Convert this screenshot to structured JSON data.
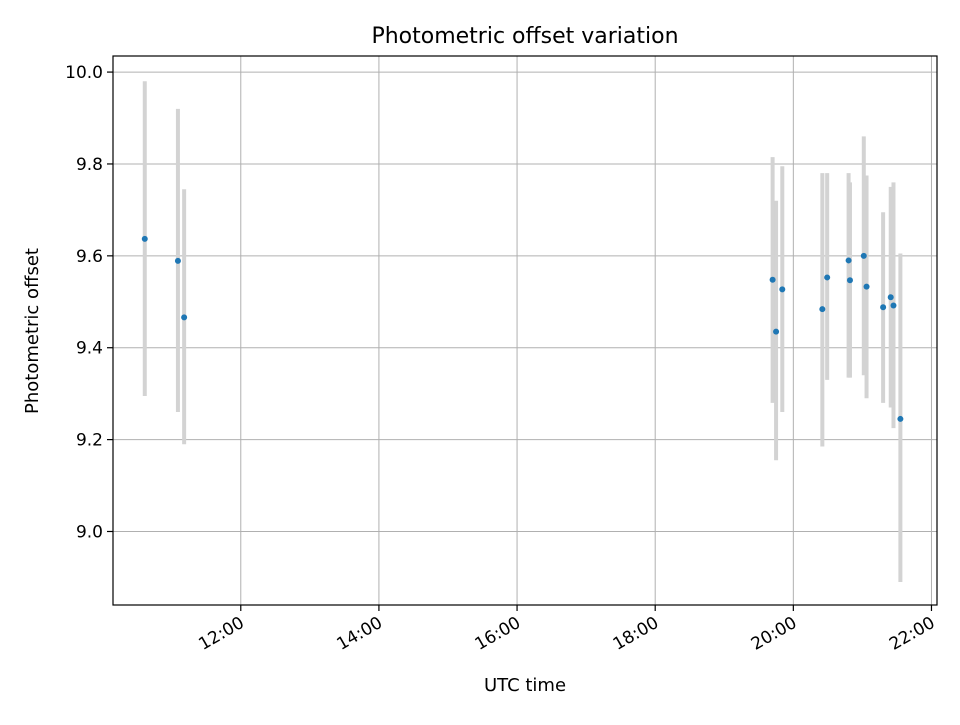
{
  "chart_data": {
    "type": "scatter",
    "title": "Photometric offset variation",
    "xlabel": "UTC time",
    "ylabel": "Photometric offset",
    "x_unit": "hours UTC",
    "xlim": [
      10.15,
      22.08
    ],
    "ylim": [
      8.84,
      10.035
    ],
    "grid": true,
    "x_ticks": [
      {
        "value": 12,
        "label": "12:00"
      },
      {
        "value": 14,
        "label": "14:00"
      },
      {
        "value": 16,
        "label": "16:00"
      },
      {
        "value": 18,
        "label": "18:00"
      },
      {
        "value": 20,
        "label": "20:00"
      },
      {
        "value": 22,
        "label": "22:00"
      }
    ],
    "y_ticks": [
      {
        "value": 9.0,
        "label": "9.0"
      },
      {
        "value": 9.2,
        "label": "9.2"
      },
      {
        "value": 9.4,
        "label": "9.4"
      },
      {
        "value": 9.6,
        "label": "9.6"
      },
      {
        "value": 9.8,
        "label": "9.8"
      },
      {
        "value": 10.0,
        "label": "10.0"
      }
    ],
    "series": [
      {
        "point_color": "#1f77b4",
        "errorbar_color": "#d3d3d3",
        "points": [
          {
            "x": 10.61,
            "y": 9.637,
            "err_low": 9.295,
            "err_high": 9.98
          },
          {
            "x": 11.09,
            "y": 9.589,
            "err_low": 9.26,
            "err_high": 9.92
          },
          {
            "x": 11.18,
            "y": 9.466,
            "err_low": 9.19,
            "err_high": 9.745
          },
          {
            "x": 19.7,
            "y": 9.548,
            "err_low": 9.28,
            "err_high": 9.815
          },
          {
            "x": 19.75,
            "y": 9.435,
            "err_low": 9.155,
            "err_high": 9.72
          },
          {
            "x": 19.84,
            "y": 9.527,
            "err_low": 9.26,
            "err_high": 9.795
          },
          {
            "x": 20.42,
            "y": 9.484,
            "err_low": 9.185,
            "err_high": 9.78
          },
          {
            "x": 20.49,
            "y": 9.553,
            "err_low": 9.33,
            "err_high": 9.78
          },
          {
            "x": 20.8,
            "y": 9.59,
            "err_low": 9.335,
            "err_high": 9.78
          },
          {
            "x": 20.82,
            "y": 9.547,
            "err_low": 9.335,
            "err_high": 9.76
          },
          {
            "x": 21.02,
            "y": 9.6,
            "err_low": 9.34,
            "err_high": 9.86
          },
          {
            "x": 21.06,
            "y": 9.533,
            "err_low": 9.29,
            "err_high": 9.775
          },
          {
            "x": 21.3,
            "y": 9.488,
            "err_low": 9.28,
            "err_high": 9.695
          },
          {
            "x": 21.41,
            "y": 9.51,
            "err_low": 9.27,
            "err_high": 9.75
          },
          {
            "x": 21.45,
            "y": 9.492,
            "err_low": 9.225,
            "err_high": 9.76
          },
          {
            "x": 21.55,
            "y": 9.245,
            "err_low": 8.89,
            "err_high": 9.605
          }
        ]
      }
    ]
  }
}
